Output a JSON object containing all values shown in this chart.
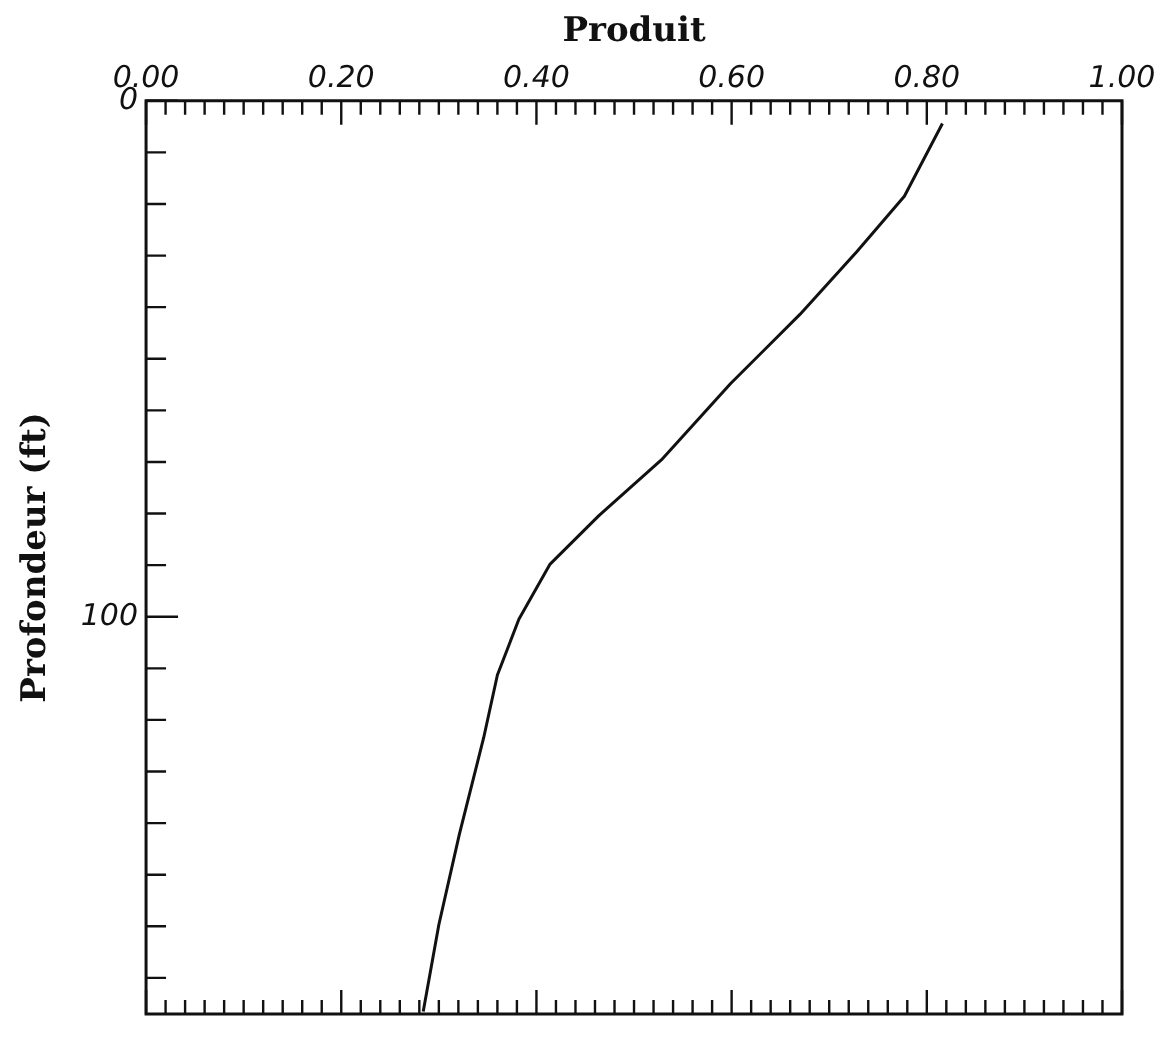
{
  "chart_data": {
    "type": "line",
    "xlabel": "Produit",
    "ylabel": "Profondeur (ft)",
    "series": [
      {
        "color": "#111111",
        "x": [
          0.816,
          0.777,
          0.728,
          0.67,
          0.599,
          0.528,
          0.464,
          0.414,
          0.382,
          0.36,
          0.346,
          0.321,
          0.3,
          0.284
        ],
        "values": [
          4.4,
          18.5,
          29.3,
          41.4,
          54.8,
          69.6,
          80.4,
          89.8,
          100.5,
          111.3,
          123.4,
          142.2,
          159.7,
          176.5
        ]
      }
    ],
    "xlim": [
      0,
      1
    ],
    "xticks": [
      {
        "value": 0,
        "label": "0.00"
      },
      {
        "value": 0.02,
        "label": null
      },
      {
        "value": 0.04,
        "label": null
      },
      {
        "value": 0.06,
        "label": null
      },
      {
        "value": 0.08,
        "label": null
      },
      {
        "value": 0.1,
        "label": null
      },
      {
        "value": 0.12,
        "label": null
      },
      {
        "value": 0.14,
        "label": null
      },
      {
        "value": 0.16,
        "label": null
      },
      {
        "value": 0.18,
        "label": null
      },
      {
        "value": 0.2,
        "label": "0.20"
      },
      {
        "value": 0.22,
        "label": null
      },
      {
        "value": 0.24,
        "label": null
      },
      {
        "value": 0.26,
        "label": null
      },
      {
        "value": 0.28,
        "label": null
      },
      {
        "value": 0.3,
        "label": null
      },
      {
        "value": 0.32,
        "label": null
      },
      {
        "value": 0.34,
        "label": null
      },
      {
        "value": 0.36,
        "label": null
      },
      {
        "value": 0.38,
        "label": null
      },
      {
        "value": 0.4,
        "label": "0.40"
      },
      {
        "value": 0.42,
        "label": null
      },
      {
        "value": 0.44,
        "label": null
      },
      {
        "value": 0.46,
        "label": null
      },
      {
        "value": 0.48,
        "label": null
      },
      {
        "value": 0.5,
        "label": null
      },
      {
        "value": 0.52,
        "label": null
      },
      {
        "value": 0.54,
        "label": null
      },
      {
        "value": 0.56,
        "label": null
      },
      {
        "value": 0.58,
        "label": null
      },
      {
        "value": 0.6,
        "label": "0.60"
      },
      {
        "value": 0.62,
        "label": null
      },
      {
        "value": 0.64,
        "label": null
      },
      {
        "value": 0.66,
        "label": null
      },
      {
        "value": 0.68,
        "label": null
      },
      {
        "value": 0.7,
        "label": null
      },
      {
        "value": 0.72,
        "label": null
      },
      {
        "value": 0.74,
        "label": null
      },
      {
        "value": 0.76,
        "label": null
      },
      {
        "value": 0.78,
        "label": null
      },
      {
        "value": 0.8,
        "label": "0.80"
      },
      {
        "value": 0.82,
        "label": null
      },
      {
        "value": 0.84,
        "label": null
      },
      {
        "value": 0.86,
        "label": null
      },
      {
        "value": 0.88,
        "label": null
      },
      {
        "value": 0.9,
        "label": null
      },
      {
        "value": 0.92,
        "label": null
      },
      {
        "value": 0.94,
        "label": null
      },
      {
        "value": 0.96,
        "label": null
      },
      {
        "value": 0.98,
        "label": null
      },
      {
        "value": 1,
        "label": "1.00"
      }
    ],
    "ylim": [
      177,
      0
    ],
    "yticks": [
      0,
      {
        "value": 10,
        "label": null
      },
      {
        "value": 20,
        "label": null
      },
      {
        "value": 30,
        "label": null
      },
      {
        "value": 40,
        "label": null
      },
      {
        "value": 50,
        "label": null
      },
      {
        "value": 60,
        "label": null
      },
      {
        "value": 70,
        "label": null
      },
      {
        "value": 80,
        "label": null
      },
      {
        "value": 90,
        "label": null
      },
      100,
      {
        "value": 110,
        "label": null
      },
      {
        "value": 120,
        "label": null
      },
      {
        "value": 130,
        "label": null
      },
      {
        "value": 140,
        "label": null
      },
      {
        "value": 150,
        "label": null
      },
      {
        "value": 160,
        "label": null
      },
      {
        "value": 170,
        "label": null
      }
    ],
    "marker": "none",
    "line_style": "solid"
  }
}
